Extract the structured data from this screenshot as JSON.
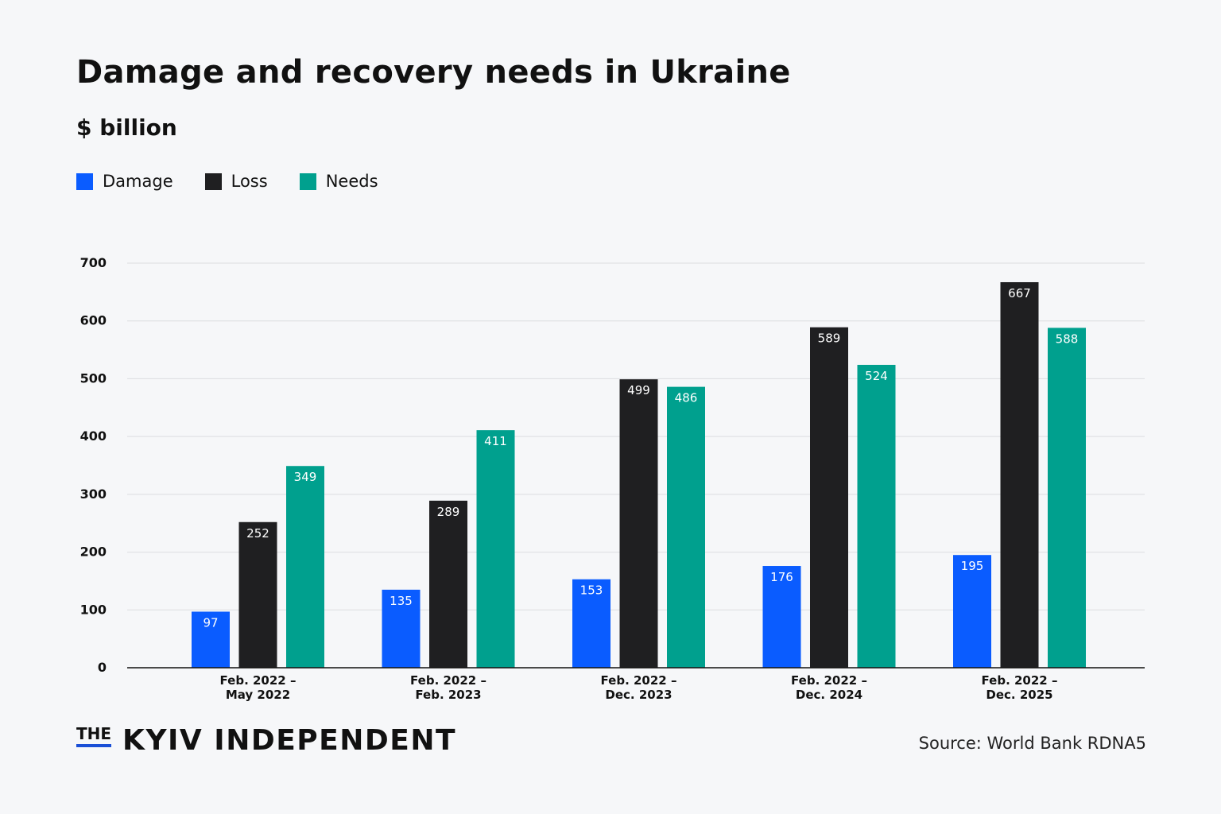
{
  "chart_data": {
    "type": "bar",
    "title": "Damage and recovery needs in Ukraine",
    "subtitle": "$ billion",
    "categories": [
      [
        "Feb. 2022 –",
        "May 2022"
      ],
      [
        "Feb. 2022 –",
        "Feb. 2023"
      ],
      [
        "Feb. 2022 –",
        "Dec. 2023"
      ],
      [
        "Feb. 2022 –",
        "Dec. 2024"
      ],
      [
        "Feb. 2022 –",
        "Dec. 2025"
      ]
    ],
    "series": [
      {
        "name": "Damage",
        "color": "#0a5cff",
        "values": [
          97,
          135,
          153,
          176,
          195
        ]
      },
      {
        "name": "Loss",
        "color": "#1f1f21",
        "values": [
          252,
          289,
          499,
          589,
          667
        ]
      },
      {
        "name": "Needs",
        "color": "#00a08e",
        "values": [
          349,
          411,
          486,
          524,
          588
        ]
      }
    ],
    "ylim": [
      0,
      700
    ],
    "yticks": [
      0,
      100,
      200,
      300,
      400,
      500,
      600,
      700
    ],
    "grid": true,
    "legend": "top-left",
    "data_labels": true
  },
  "footer": {
    "logo_the": "THE",
    "logo_name": "KYIV INDEPENDENT",
    "source": "Source: World Bank RDNA5"
  }
}
